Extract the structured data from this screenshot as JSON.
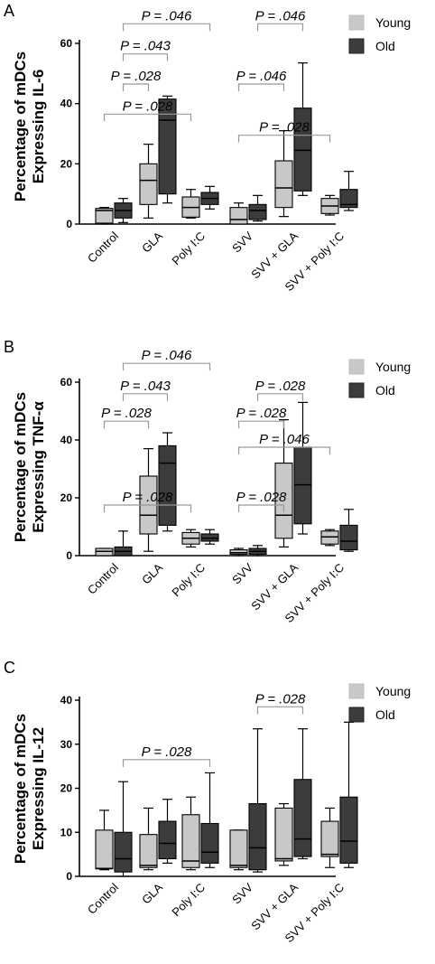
{
  "colors": {
    "young": "#c8c8c8",
    "old": "#3c3c3c",
    "bracket": "#999999"
  },
  "chart_data": [
    {
      "type": "box",
      "panel": "A",
      "ylabel_line1": "Percentage of mDCs",
      "ylabel_line2": "Expressing IL-6",
      "ylim": [
        0,
        60
      ],
      "yticks": [
        0,
        20,
        40,
        60
      ],
      "categories": [
        "Control",
        "GLA",
        "Poly I:C",
        "SVV",
        "SVV + GLA",
        "SVV + Poly I:C"
      ],
      "legend": [
        "Young",
        "Old"
      ],
      "series": [
        {
          "name": "Young",
          "boxes": [
            {
              "min": 0,
              "q1": 0.3,
              "median": 4.5,
              "q3": 5.2,
              "max": 5.5
            },
            {
              "min": 2,
              "q1": 6.5,
              "median": 14.5,
              "q3": 20,
              "max": 26.5
            },
            {
              "min": 2,
              "q1": 2.3,
              "median": 5.5,
              "q3": 9,
              "max": 11.5
            },
            {
              "min": 0,
              "q1": 0,
              "median": 1.5,
              "q3": 5.5,
              "max": 7
            },
            {
              "min": 2.5,
              "q1": 5.5,
              "median": 12,
              "q3": 21,
              "max": 31
            },
            {
              "min": 3,
              "q1": 3.5,
              "median": 6,
              "q3": 8.5,
              "max": 9.5
            }
          ]
        },
        {
          "name": "Old",
          "boxes": [
            {
              "min": 0.5,
              "q1": 2,
              "median": 4.5,
              "q3": 7,
              "max": 8.5
            },
            {
              "min": 7,
              "q1": 10,
              "median": 34.5,
              "q3": 41.5,
              "max": 42.5
            },
            {
              "min": 5,
              "q1": 6.5,
              "median": 8.5,
              "q3": 10.5,
              "max": 12.5
            },
            {
              "min": 1,
              "q1": 1.5,
              "median": 4.5,
              "q3": 6.5,
              "max": 9.5
            },
            {
              "min": 9.5,
              "q1": 11,
              "median": 24.5,
              "q3": 38.5,
              "max": 53.5
            },
            {
              "min": 4.5,
              "q1": 5.5,
              "median": 6.5,
              "q3": 11.5,
              "max": 17.5
            }
          ]
        }
      ],
      "annotations": [
        {
          "text": "P = .046",
          "from": [
            0,
            1
          ],
          "to": [
            2,
            1
          ],
          "y": 66.5
        },
        {
          "text": "P = .043",
          "from": [
            0,
            1
          ],
          "to": [
            1,
            1
          ],
          "y": 56.5
        },
        {
          "text": "P = .028",
          "from": [
            0,
            1
          ],
          "to": [
            1,
            0
          ],
          "y": 46.5
        },
        {
          "text": "P = .028",
          "from": [
            0,
            0
          ],
          "to": [
            2,
            0
          ],
          "y": 36.5
        },
        {
          "text": "P = .046",
          "from": [
            3,
            1
          ],
          "to": [
            4,
            1
          ],
          "y": 66.5
        },
        {
          "text": "P = .046",
          "from": [
            3,
            0
          ],
          "to": [
            4,
            0
          ],
          "y": 46.5
        },
        {
          "text": "P = .028",
          "from": [
            3,
            0
          ],
          "to": [
            5,
            0
          ],
          "y": 29.5
        }
      ]
    },
    {
      "type": "box",
      "panel": "B",
      "ylabel_line1": "Percentage of mDCs",
      "ylabel_line2": "Expressing TNF-α",
      "ylim": [
        0,
        60
      ],
      "yticks": [
        0,
        20,
        40,
        60
      ],
      "categories": [
        "Control",
        "GLA",
        "Poly I:C",
        "SVV",
        "SVV + GLA",
        "SVV + Poly I:C"
      ],
      "legend": [
        "Young",
        "Old"
      ],
      "series": [
        {
          "name": "Young",
          "boxes": [
            {
              "min": 0,
              "q1": 0,
              "median": 1.5,
              "q3": 2.5,
              "max": 2.5
            },
            {
              "min": 1.5,
              "q1": 7.5,
              "median": 14,
              "q3": 27.5,
              "max": 37
            },
            {
              "min": 3,
              "q1": 4,
              "median": 6,
              "q3": 8,
              "max": 9
            },
            {
              "min": 0,
              "q1": 0.5,
              "median": 1,
              "q3": 2,
              "max": 2.5
            },
            {
              "min": 3,
              "q1": 6,
              "median": 14,
              "q3": 32,
              "max": 47
            },
            {
              "min": 3.5,
              "q1": 4,
              "median": 6.5,
              "q3": 8.5,
              "max": 9
            }
          ]
        },
        {
          "name": "Old",
          "boxes": [
            {
              "min": 0,
              "q1": 0,
              "median": 1.5,
              "q3": 3,
              "max": 8.5
            },
            {
              "min": 8.5,
              "q1": 10.5,
              "median": 32,
              "q3": 38,
              "max": 42.5
            },
            {
              "min": 4,
              "q1": 5,
              "median": 6,
              "q3": 7.5,
              "max": 9
            },
            {
              "min": 0,
              "q1": 0.5,
              "median": 1.5,
              "q3": 2.5,
              "max": 3.5
            },
            {
              "min": 7.5,
              "q1": 11,
              "median": 24.5,
              "q3": 37.5,
              "max": 53
            },
            {
              "min": 1.5,
              "q1": 2,
              "median": 5,
              "q3": 10.5,
              "max": 16
            }
          ]
        }
      ],
      "annotations": [
        {
          "text": "P = .046",
          "from": [
            0,
            1
          ],
          "to": [
            2,
            1
          ],
          "y": 66.5
        },
        {
          "text": "P = .043",
          "from": [
            0,
            1
          ],
          "to": [
            1,
            1
          ],
          "y": 56
        },
        {
          "text": "P = .028",
          "from": [
            0,
            0
          ],
          "to": [
            1,
            0
          ],
          "y": 46.5
        },
        {
          "text": "P = .028",
          "from": [
            0,
            0
          ],
          "to": [
            2,
            0
          ],
          "y": 17.5
        },
        {
          "text": "P = .028",
          "from": [
            3,
            1
          ],
          "to": [
            4,
            1
          ],
          "y": 56
        },
        {
          "text": "P = .028",
          "from": [
            3,
            0
          ],
          "to": [
            4,
            0
          ],
          "y": 46.5
        },
        {
          "text": "P = .028",
          "from": [
            3,
            0
          ],
          "to": [
            4,
            0
          ],
          "y": 17.5
        },
        {
          "text": "P = .046",
          "from": [
            3,
            0
          ],
          "to": [
            5,
            0
          ],
          "y": 37.5
        }
      ]
    },
    {
      "type": "box",
      "panel": "C",
      "ylabel_line1": "Percentage of mDCs",
      "ylabel_line2": "Expressing IL-12",
      "ylim": [
        0,
        40
      ],
      "yticks": [
        0,
        10,
        20,
        30,
        40
      ],
      "categories": [
        "Control",
        "GLA",
        "Poly I:C",
        "SVV",
        "SVV + GLA",
        "SVV + Poly I:C"
      ],
      "legend": [
        "Young",
        "Old"
      ],
      "series": [
        {
          "name": "Young",
          "boxes": [
            {
              "min": 1.5,
              "q1": 1.7,
              "median": 1.8,
              "q3": 10.5,
              "max": 15
            },
            {
              "min": 1.5,
              "q1": 2,
              "median": 2.5,
              "q3": 9.5,
              "max": 15.5
            },
            {
              "min": 1.5,
              "q1": 2,
              "median": 3.5,
              "q3": 14,
              "max": 18
            },
            {
              "min": 1.5,
              "q1": 2,
              "median": 2.5,
              "q3": 10.5,
              "max": 10.5
            },
            {
              "min": 2.5,
              "q1": 3.5,
              "median": 4,
              "q3": 15.5,
              "max": 16.5
            },
            {
              "min": 2,
              "q1": 4.5,
              "median": 5,
              "q3": 12.5,
              "max": 15.5
            }
          ]
        },
        {
          "name": "Old",
          "boxes": [
            {
              "min": 0,
              "q1": 1,
              "median": 4,
              "q3": 10,
              "max": 21.5
            },
            {
              "min": 3,
              "q1": 4,
              "median": 7.5,
              "q3": 12.5,
              "max": 17.5
            },
            {
              "min": 2,
              "q1": 3,
              "median": 5.5,
              "q3": 12,
              "max": 23.5
            },
            {
              "min": 1,
              "q1": 1.5,
              "median": 6.5,
              "q3": 16.5,
              "max": 33.5
            },
            {
              "min": 4,
              "q1": 4.5,
              "median": 8.5,
              "q3": 22,
              "max": 33.5
            },
            {
              "min": 2,
              "q1": 3,
              "median": 8,
              "q3": 18,
              "max": 35
            }
          ]
        }
      ],
      "annotations": [
        {
          "text": "P = .028",
          "from": [
            0,
            1
          ],
          "to": [
            2,
            1
          ],
          "y": 26.5
        },
        {
          "text": "P = .028",
          "from": [
            3,
            1
          ],
          "to": [
            4,
            1
          ],
          "y": 38.5
        }
      ]
    }
  ]
}
